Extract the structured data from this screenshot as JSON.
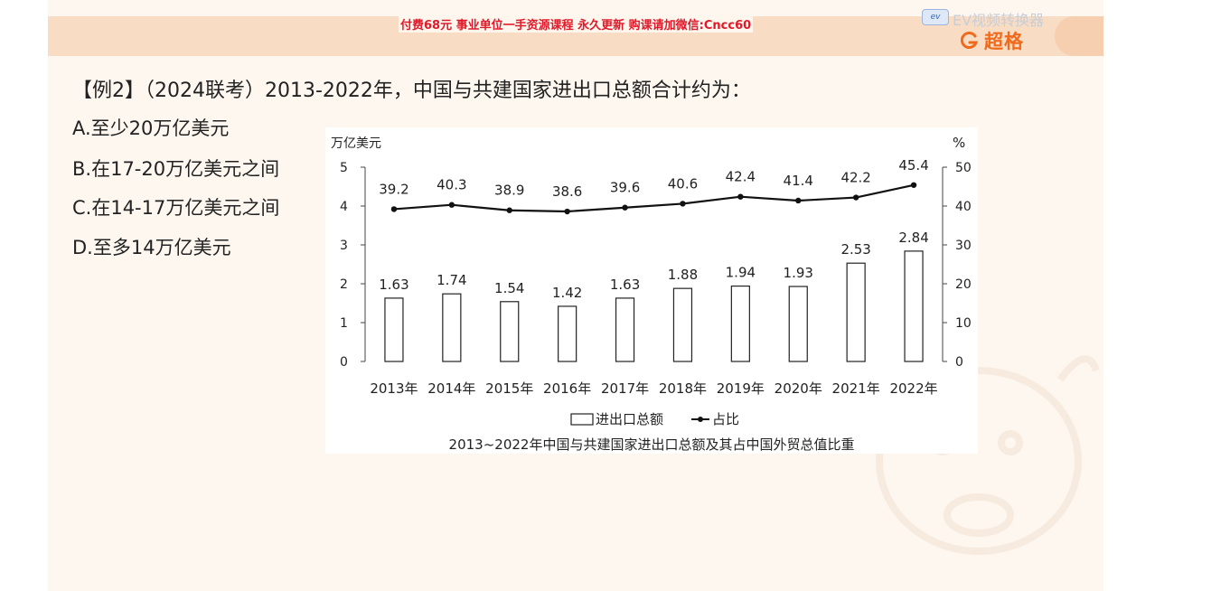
{
  "header": {
    "ad_text": "付费68元 事业单位一手资源课程 永久更新 购课请加微信:Cncc60",
    "ev_badge": "ev",
    "ev_text": "EV视频转换器",
    "brand_name": "超格"
  },
  "question": {
    "text": "【例2】（2024联考）2013-2022年，中国与共建国家进出口总额合计约为：",
    "options": [
      "A.至少20万亿美元",
      "B.在17-20万亿美元之间",
      "C.在14-17万亿美元之间",
      "D.至多14万亿美元"
    ]
  },
  "colors": {
    "accent": "#f06a1d",
    "ad_red": "#e0192a",
    "header_band": "#f8dcc3",
    "slide_bg": "#fdf7f0"
  },
  "chart_data": {
    "type": "bar",
    "title": "2013~2022年中国与共建国家进出口总额及其占中国外贸总值比重",
    "ylabel_left": "万亿美元",
    "ylabel_right": "%",
    "ylim_left": [
      0,
      5
    ],
    "ylim_right": [
      0,
      50
    ],
    "yticks_left": [
      "0",
      "1",
      "2",
      "3",
      "4",
      "5"
    ],
    "yticks_right": [
      "0",
      "10",
      "20",
      "30",
      "40",
      "50"
    ],
    "categories": [
      "2013年",
      "2014年",
      "2015年",
      "2016年",
      "2017年",
      "2018年",
      "2019年",
      "2020年",
      "2021年",
      "2022年"
    ],
    "series": [
      {
        "name": "进出口总额",
        "type": "bar",
        "axis": "left",
        "values": [
          1.63,
          1.74,
          1.54,
          1.42,
          1.63,
          1.88,
          1.94,
          1.93,
          2.53,
          2.84
        ],
        "labels": [
          "1.63",
          "1.74",
          "1.54",
          "1.42",
          "1.63",
          "1.88",
          "1.94",
          "1.93",
          "2.53",
          "2.84"
        ]
      },
      {
        "name": "占比",
        "type": "line",
        "axis": "right",
        "values": [
          39.2,
          40.3,
          38.9,
          38.6,
          39.6,
          40.6,
          42.4,
          41.4,
          42.2,
          45.4
        ],
        "labels": [
          "39.2",
          "40.3",
          "38.9",
          "38.6",
          "39.6",
          "40.6",
          "42.4",
          "41.4",
          "42.2",
          "45.4"
        ]
      }
    ],
    "legend": "bottom-center",
    "grid": false
  }
}
